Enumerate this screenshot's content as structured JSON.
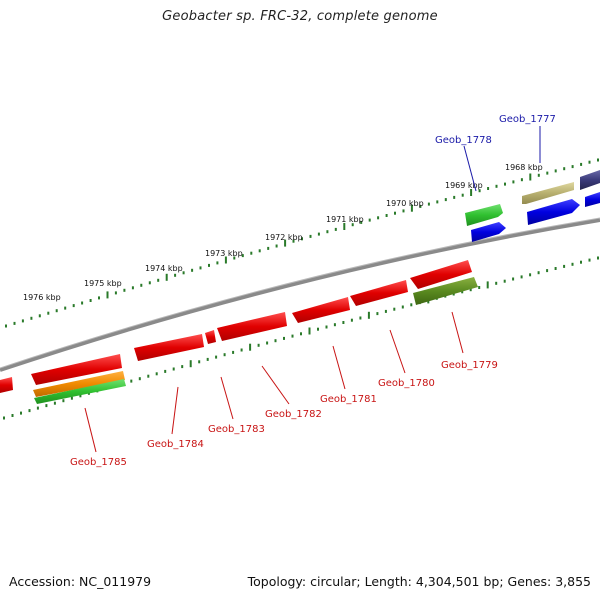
{
  "title": "Geobacter sp. FRC-32, complete genome",
  "footer": {
    "accession": "Accession: NC_011979",
    "summary": "Topology: circular; Length: 4,304,501 bp; Genes: 3,855"
  },
  "ruler_labels": [
    "1968 kbp",
    "1969 kbp",
    "1970 kbp",
    "1971 kbp",
    "1972 kbp",
    "1973 kbp",
    "1974 kbp",
    "1975 kbp",
    "1976 kbp"
  ],
  "gene_labels": [
    "Geob_1777",
    "Geob_1778",
    "Geob_1779",
    "Geob_1780",
    "Geob_1781",
    "Geob_1782",
    "Geob_1783",
    "Geob_1784",
    "Geob_1785"
  ],
  "colors": {
    "forward_label": "#1a1aa8",
    "reverse_label": "#c81414",
    "red_gene": "#e01010",
    "blue_gene": "#1010e0",
    "green_gene": "#30c030",
    "olive_gene": "#5a8a20",
    "khaki_gene": "#b8b070",
    "orange_gene": "#f08a00",
    "navy_gene": "#3a3a7a",
    "ticks": "#2a7a2a",
    "backbone": "#888888"
  }
}
